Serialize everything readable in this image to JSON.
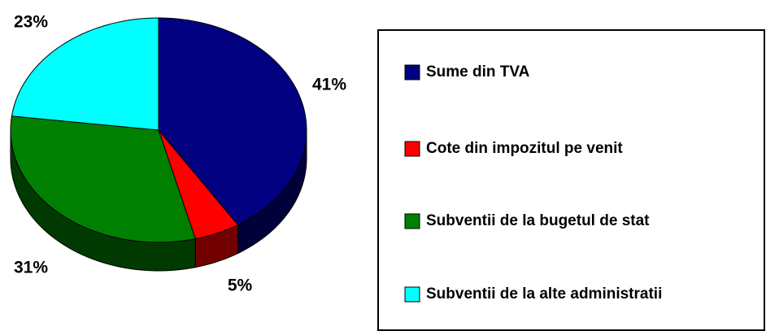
{
  "chart_data": {
    "type": "pie",
    "categories": [
      "Sume din TVA",
      "Cote din impozitul pe venit",
      "Subventii de la bugetul de stat",
      "Subventii de la alte administratii"
    ],
    "values": [
      41,
      5,
      31,
      23
    ],
    "value_labels": [
      "41%",
      "5%",
      "31%",
      "23%"
    ],
    "colors": [
      "#000080",
      "#ff0000",
      "#008000",
      "#00ffff"
    ],
    "legend": "right"
  }
}
